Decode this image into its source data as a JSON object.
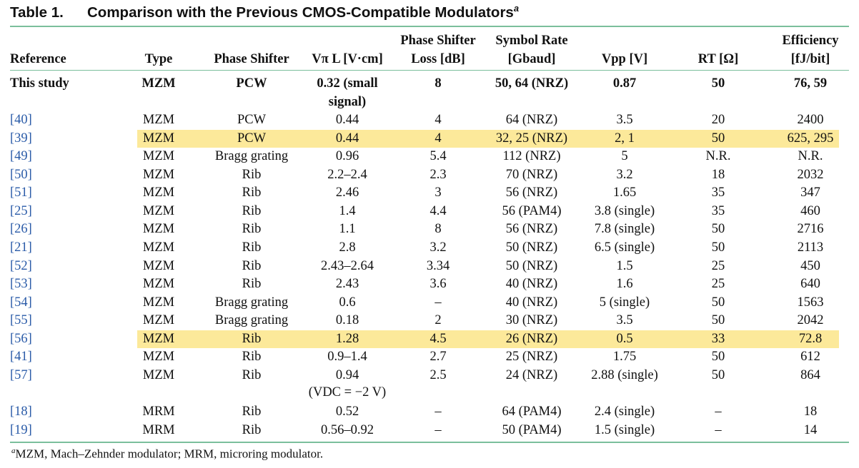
{
  "caption": {
    "label": "Table 1.",
    "title": "Comparison with the Previous CMOS-Compatible Modulators",
    "note_mark": "a"
  },
  "headers": {
    "reference": "Reference",
    "type": "Type",
    "phase_shifter": "Phase Shifter",
    "vpi_l": "Vπ L [V·cm]",
    "loss_line1": "Phase Shifter",
    "loss_line2": "Loss [dB]",
    "rate_line1": "Symbol Rate",
    "rate_line2": "[Gbaud]",
    "vpp": "Vpp [V]",
    "rt": "RT [Ω]",
    "eff_line1": "Efficiency",
    "eff_line2": "[fJ/bit]"
  },
  "this_study": {
    "reference": "This study",
    "type": "MZM",
    "phase_shifter": "PCW",
    "vpi_l_line1": "0.32 (small",
    "vpi_l_line2": "signal)",
    "loss": "8",
    "rate": "50, 64 (NRZ)",
    "vpp": "0.87",
    "rt": "50",
    "eff": "76, 59"
  },
  "rows": [
    {
      "ref": "[40]",
      "type": "MZM",
      "ps": "PCW",
      "vpil": "0.44",
      "loss": "4",
      "rate": "64 (NRZ)",
      "vpp": "3.5",
      "rt": "20",
      "eff": "2400",
      "hl": false
    },
    {
      "ref": "[39]",
      "type": "MZM",
      "ps": "PCW",
      "vpil": "0.44",
      "loss": "4",
      "rate": "32, 25 (NRZ)",
      "vpp": "2, 1",
      "rt": "50",
      "eff": "625, 295",
      "hl": true
    },
    {
      "ref": "[49]",
      "type": "MZM",
      "ps": "Bragg grating",
      "vpil": "0.96",
      "loss": "5.4",
      "rate": "112 (NRZ)",
      "vpp": "5",
      "rt": "N.R.",
      "eff": "N.R.",
      "hl": false
    },
    {
      "ref": "[50]",
      "type": "MZM",
      "ps": "Rib",
      "vpil": "2.2–2.4",
      "loss": "2.3",
      "rate": "70 (NRZ)",
      "vpp": "3.2",
      "rt": "18",
      "eff": "2032",
      "hl": false
    },
    {
      "ref": "[51]",
      "type": "MZM",
      "ps": "Rib",
      "vpil": "2.46",
      "loss": "3",
      "rate": "56 (NRZ)",
      "vpp": "1.65",
      "rt": "35",
      "eff": "347",
      "hl": false
    },
    {
      "ref": "[25]",
      "type": "MZM",
      "ps": "Rib",
      "vpil": "1.4",
      "loss": "4.4",
      "rate": "56 (PAM4)",
      "vpp": "3.8 (single)",
      "rt": "35",
      "eff": "460",
      "hl": false
    },
    {
      "ref": "[26]",
      "type": "MZM",
      "ps": "Rib",
      "vpil": "1.1",
      "loss": "8",
      "rate": "56 (NRZ)",
      "vpp": "7.8 (single)",
      "rt": "50",
      "eff": "2716",
      "hl": false
    },
    {
      "ref": "[21]",
      "type": "MZM",
      "ps": "Rib",
      "vpil": "2.8",
      "loss": "3.2",
      "rate": "50 (NRZ)",
      "vpp": "6.5 (single)",
      "rt": "50",
      "eff": "2113",
      "hl": false
    },
    {
      "ref": "[52]",
      "type": "MZM",
      "ps": "Rib",
      "vpil": "2.43–2.64",
      "loss": "3.34",
      "rate": "50 (NRZ)",
      "vpp": "1.5",
      "rt": "25",
      "eff": "450",
      "hl": false
    },
    {
      "ref": "[53]",
      "type": "MZM",
      "ps": "Rib",
      "vpil": "2.43",
      "loss": "3.6",
      "rate": "40 (NRZ)",
      "vpp": "1.6",
      "rt": "25",
      "eff": "640",
      "hl": false
    },
    {
      "ref": "[54]",
      "type": "MZM",
      "ps": "Bragg grating",
      "vpil": "0.6",
      "loss": "–",
      "rate": "40 (NRZ)",
      "vpp": "5 (single)",
      "rt": "50",
      "eff": "1563",
      "hl": false
    },
    {
      "ref": "[55]",
      "type": "MZM",
      "ps": "Bragg grating",
      "vpil": "0.18",
      "loss": "2",
      "rate": "30 (NRZ)",
      "vpp": "3.5",
      "rt": "50",
      "eff": "2042",
      "hl": false
    },
    {
      "ref": "[56]",
      "type": "MZM",
      "ps": "Rib",
      "vpil": "1.28",
      "loss": "4.5",
      "rate": "26 (NRZ)",
      "vpp": "0.5",
      "rt": "33",
      "eff": "72.8",
      "hl": true
    },
    {
      "ref": "[41]",
      "type": "MZM",
      "ps": "Rib",
      "vpil": "0.9–1.4",
      "loss": "2.7",
      "rate": "25 (NRZ)",
      "vpp": "1.75",
      "rt": "50",
      "eff": "612",
      "hl": false
    },
    {
      "ref": "[57]",
      "type": "MZM",
      "ps": "Rib",
      "vpil": "0.94",
      "loss": "2.5",
      "rate": "24 (NRZ)",
      "vpp": "2.88 (single)",
      "rt": "50",
      "eff": "864",
      "hl": false
    },
    {
      "ref": "[18]",
      "type": "MRM",
      "ps": "Rib",
      "vpil": "0.52",
      "loss": "–",
      "rate": "64 (PAM4)",
      "vpp": "2.4 (single)",
      "rt": "–",
      "eff": "18",
      "hl": false
    },
    {
      "ref": "[19]",
      "type": "MRM",
      "ps": "Rib",
      "vpil": "0.56–0.92",
      "loss": "–",
      "rate": "50 (PAM4)",
      "vpp": "1.5 (single)",
      "rt": "–",
      "eff": "14",
      "hl": false
    }
  ],
  "row57_note": "(VDC = −2 V)",
  "footnote": {
    "mark": "a",
    "text": "MZM, Mach–Zehnder modulator; MRM, microring modulator."
  }
}
